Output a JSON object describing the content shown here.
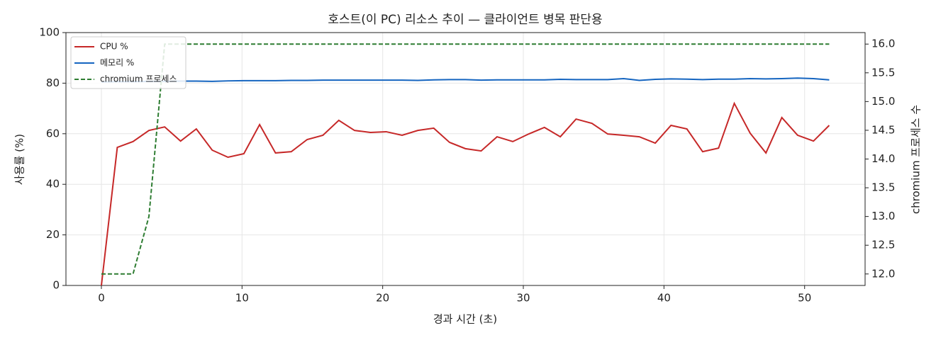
{
  "chart_data": {
    "type": "line",
    "title": "호스트(이 PC) 리소스 추이 — 클라이언트 병목 판단용",
    "x_label": "경과 시간 (초)",
    "y_label": "사용률 (%)",
    "y2_label": "chromium 프로세스 수",
    "x": [
      0,
      1.13,
      2.25,
      3.38,
      4.5,
      5.63,
      6.75,
      7.88,
      9,
      10.13,
      11.25,
      12.38,
      13.5,
      14.63,
      15.75,
      16.88,
      18,
      19.13,
      20.25,
      21.38,
      22.5,
      23.63,
      24.75,
      25.88,
      27,
      28.13,
      29.25,
      30.38,
      31.5,
      32.63,
      33.75,
      34.88,
      36,
      37.13,
      38.25,
      39.38,
      40.5,
      41.63,
      42.75,
      43.88,
      45,
      46.13,
      47.25,
      48.38,
      49.5,
      50.63,
      51.75
    ],
    "series": [
      {
        "name": "CPU %",
        "color": "#c62828",
        "linestyle": "solid",
        "axis": "y",
        "values": [
          0,
          54.6,
          56.9,
          61.3,
          62.7,
          57.1,
          61.9,
          53.5,
          50.7,
          52.1,
          63.6,
          52.4,
          52.9,
          57.7,
          59.4,
          65.3,
          61.3,
          60.5,
          60.8,
          59.4,
          61.3,
          62.2,
          56.6,
          54.1,
          53.2,
          58.8,
          56.9,
          59.9,
          62.5,
          58.8,
          65.8,
          64.1,
          59.9,
          59.4,
          58.8,
          56.3,
          63.3,
          61.9,
          52.9,
          54.3,
          72.0,
          60.2,
          52.4,
          66.4,
          59.4,
          57.1,
          63.3
        ]
      },
      {
        "name": "메모리 %",
        "color": "#1565c0",
        "linestyle": "solid",
        "axis": "y",
        "values": [
          80.5,
          80.6,
          80.6,
          80.7,
          80.7,
          80.8,
          80.8,
          80.7,
          80.9,
          81.0,
          81.0,
          81.0,
          81.1,
          81.1,
          81.2,
          81.2,
          81.2,
          81.2,
          81.2,
          81.2,
          81.1,
          81.3,
          81.4,
          81.4,
          81.2,
          81.3,
          81.3,
          81.3,
          81.3,
          81.5,
          81.4,
          81.4,
          81.4,
          81.8,
          81.1,
          81.5,
          81.7,
          81.6,
          81.4,
          81.6,
          81.6,
          81.8,
          81.7,
          81.8,
          82.0,
          81.8,
          81.3
        ]
      },
      {
        "name": "chromium 프로세스",
        "color": "#2e7d32",
        "linestyle": "dashed",
        "axis": "y2",
        "values": [
          12,
          12,
          12,
          13,
          16,
          16,
          16,
          16,
          16,
          16,
          16,
          16,
          16,
          16,
          16,
          16,
          16,
          16,
          16,
          16,
          16,
          16,
          16,
          16,
          16,
          16,
          16,
          16,
          16,
          16,
          16,
          16,
          16,
          16,
          16,
          16,
          16,
          16,
          16,
          16,
          16,
          16,
          16,
          16,
          16,
          16,
          16
        ]
      }
    ],
    "xlim": [
      -2.52,
      54.3
    ],
    "xticks": [
      0,
      10,
      20,
      30,
      40,
      50
    ],
    "ylim": [
      0,
      100
    ],
    "yticks": [
      0,
      20,
      40,
      60,
      80,
      100
    ],
    "y2lim": [
      11.8,
      16.2
    ],
    "y2ticks": [
      {
        "value": 12,
        "label": "12.0"
      },
      {
        "value": 12.5,
        "label": "12.5"
      },
      {
        "value": 13,
        "label": "13.0"
      },
      {
        "value": 13.5,
        "label": "13.5"
      },
      {
        "value": 14,
        "label": "14.0"
      },
      {
        "value": 14.5,
        "label": "14.5"
      },
      {
        "value": 15,
        "label": "15.0"
      },
      {
        "value": 15.5,
        "label": "15.5"
      },
      {
        "value": 16,
        "label": "16.0"
      }
    ],
    "grid": true,
    "legend": "upper left"
  }
}
